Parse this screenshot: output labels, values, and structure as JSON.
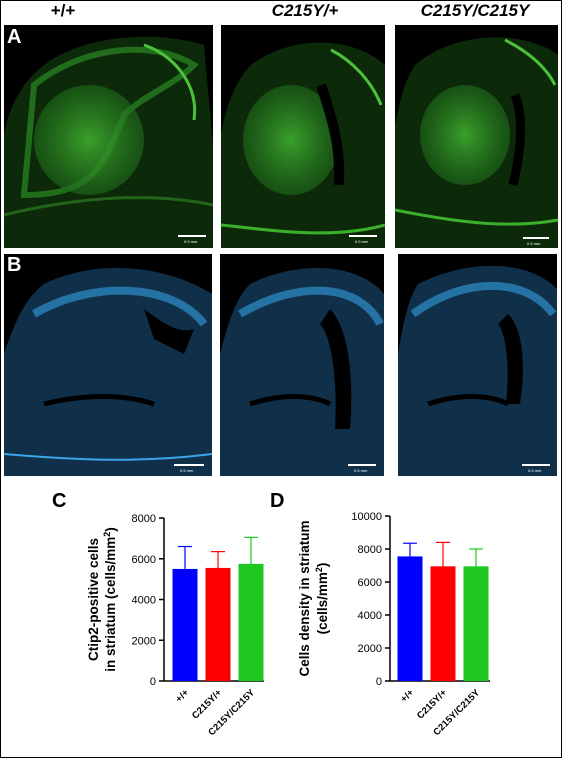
{
  "headers": [
    "+/+",
    "C215Y/+",
    "C215Y/C215Y"
  ],
  "panels": {
    "a": "A",
    "b": "B",
    "c": "C",
    "d": "D"
  },
  "scale_label": "0.5 mm",
  "colors": {
    "ctip2_stain": "#2fb52f",
    "nuclear_stain": "#1f9de0",
    "wt": "#0000ff",
    "het": "#ff0000",
    "hom": "#1ec81e"
  },
  "chart_data": [
    {
      "type": "bar",
      "panel": "C",
      "categories": [
        "+/+",
        "C215Y/+",
        "C215Y/C215Y"
      ],
      "values": [
        5500,
        5550,
        5750
      ],
      "errors": [
        1100,
        800,
        1300
      ],
      "ylabel_line1": "Ctip2-positive cells",
      "ylabel_line2": "in striatum (cells/mm",
      "ylabel_sup": "2",
      "ylabel_close": ")",
      "ylim": [
        0,
        8000
      ],
      "yticks": [
        "0",
        "2000",
        "4000",
        "6000",
        "8000"
      ],
      "colors": [
        "#0000ff",
        "#ff0000",
        "#1ec81e"
      ]
    },
    {
      "type": "bar",
      "panel": "D",
      "categories": [
        "+/+",
        "C215Y/+",
        "C215Y/C215Y"
      ],
      "values": [
        7550,
        6950,
        6950
      ],
      "errors": [
        800,
        1450,
        1050
      ],
      "ylabel_line1": "Cells density in striatum",
      "ylabel_line2": "(cells/mm",
      "ylabel_sup": "2",
      "ylabel_close": ")",
      "ylim": [
        0,
        10000
      ],
      "yticks": [
        "0",
        "2000",
        "4000",
        "6000",
        "8000",
        "10000"
      ],
      "colors": [
        "#0000ff",
        "#ff0000",
        "#1ec81e"
      ]
    }
  ]
}
